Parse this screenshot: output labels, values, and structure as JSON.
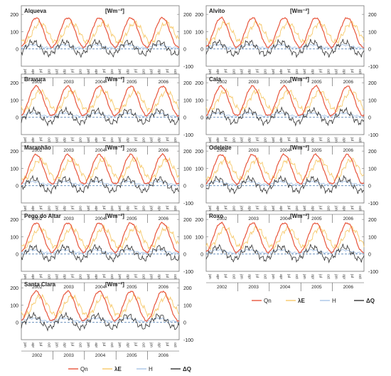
{
  "figure": {
    "unit_label": "[Wm⁻²]",
    "y_ticks": [
      200,
      100,
      0,
      -100
    ],
    "month_ticks": [
      "jan",
      "apr",
      "jul",
      "oct"
    ],
    "years": [
      "2002",
      "2003",
      "2004",
      "2005",
      "2006"
    ],
    "legend": {
      "items": [
        {
          "label": "Qn",
          "color": "#e8553b"
        },
        {
          "label": "λE",
          "color": "#f7c96a"
        },
        {
          "label": "H",
          "color": "#a9c4e6"
        },
        {
          "label": "ΔQ",
          "color": "#333333"
        }
      ]
    }
  },
  "chart_data": [
    {
      "type": "line",
      "title": "Alqueva",
      "x_range": [
        2002,
        2007
      ],
      "ylim": [
        -100,
        250
      ],
      "series": [
        "Qn",
        "λE",
        "H",
        "ΔQ"
      ]
    },
    {
      "type": "line",
      "title": "Alvito",
      "x_range": [
        2002,
        2007
      ],
      "ylim": [
        -100,
        250
      ],
      "series": [
        "Qn",
        "λE",
        "H",
        "ΔQ"
      ]
    },
    {
      "type": "line",
      "title": "Bravura",
      "x_range": [
        2002,
        2007
      ],
      "ylim": [
        -100,
        250
      ],
      "series": [
        "Qn",
        "λE",
        "H",
        "ΔQ"
      ]
    },
    {
      "type": "line",
      "title": "Caia",
      "x_range": [
        2002,
        2007
      ],
      "ylim": [
        -100,
        250
      ],
      "series": [
        "Qn",
        "λE",
        "H",
        "ΔQ"
      ]
    },
    {
      "type": "line",
      "title": "Maranhão",
      "x_range": [
        2002,
        2007
      ],
      "ylim": [
        -100,
        250
      ],
      "series": [
        "Qn",
        "λE",
        "H",
        "ΔQ"
      ]
    },
    {
      "type": "line",
      "title": "Odeleite",
      "x_range": [
        2002,
        2007
      ],
      "ylim": [
        -100,
        250
      ],
      "series": [
        "Qn",
        "λE",
        "H",
        "ΔQ"
      ]
    },
    {
      "type": "line",
      "title": "Pego do Altar",
      "x_range": [
        2002,
        2007
      ],
      "ylim": [
        -100,
        250
      ],
      "series": [
        "Qn",
        "λE",
        "H",
        "ΔQ"
      ]
    },
    {
      "type": "line",
      "title": "Roxo",
      "x_range": [
        2002,
        2007
      ],
      "ylim": [
        -100,
        250
      ],
      "series": [
        "Qn",
        "λE",
        "H",
        "ΔQ"
      ]
    },
    {
      "type": "line",
      "title": "Santa Clara",
      "x_range": [
        2002,
        2007
      ],
      "ylim": [
        -100,
        250
      ],
      "series": [
        "Qn",
        "λE",
        "H",
        "ΔQ"
      ]
    }
  ]
}
